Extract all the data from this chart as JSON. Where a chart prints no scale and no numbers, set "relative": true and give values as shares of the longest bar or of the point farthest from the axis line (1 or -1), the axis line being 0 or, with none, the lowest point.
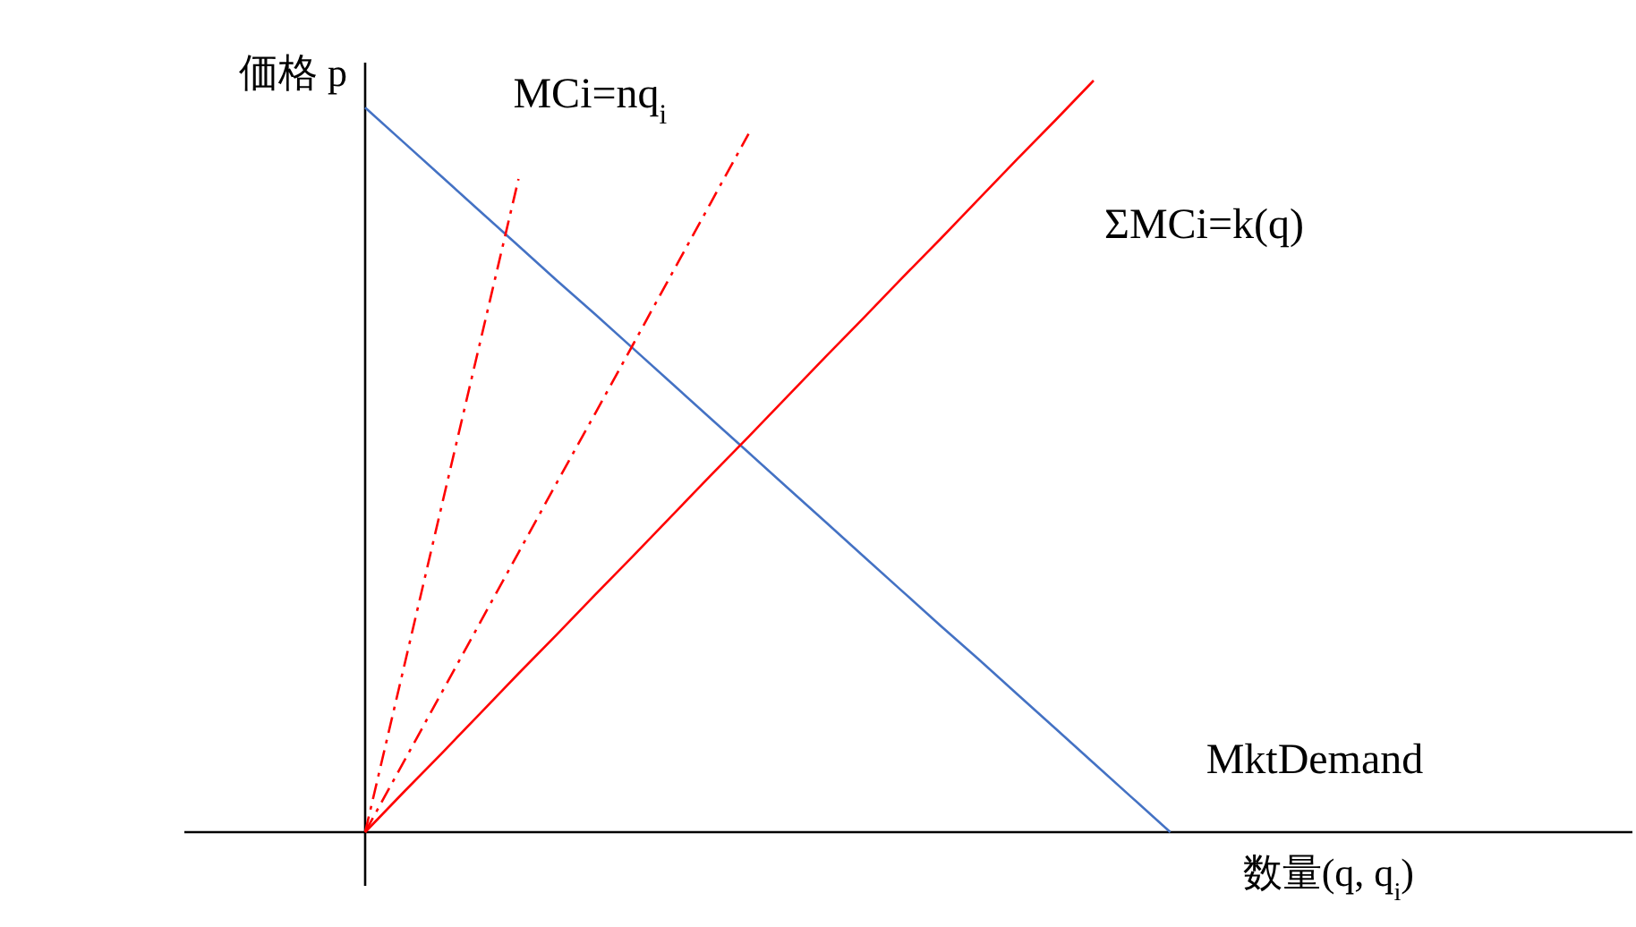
{
  "chart_data": {
    "type": "line",
    "relative": true,
    "ylabel": "価格 p",
    "xlabel": "数量(q, q$_{i}$)",
    "marker": "none",
    "categories": [
      null,
      null,
      null,
      null,
      null,
      null,
      null,
      null,
      null,
      null,
      null,
      null,
      null,
      null,
      null,
      null,
      null,
      null,
      null,
      null,
      null,
      null
    ],
    "series": [
      {
        "name": "MktDemand",
        "color": "#4472c4",
        "line_style": "solid",
        "values": [
          0.964,
          0.918,
          0.872,
          0.826,
          0.78,
          0.734,
          0.689,
          0.643,
          0.597,
          0.551,
          0.505,
          0.459,
          0.413,
          0.367,
          0.321,
          0.275,
          0.23,
          0.184,
          0.138,
          0.092,
          0.046,
          0
        ]
      },
      {
        "name": "ΣMCi=k(q)",
        "color": "#ff0000",
        "line_style": "solid",
        "values": [
          0,
          0.053,
          0.105,
          0.158,
          0.211,
          0.263,
          0.316,
          0.368,
          0.421,
          0.474,
          0.526,
          0.579,
          0.632,
          0.684,
          0.737,
          0.789,
          0.842,
          0.895,
          0.947,
          1,
          null,
          null
        ]
      },
      {
        "name": "MCi=nq$_{i}$",
        "color": "#ff0000",
        "line_style": "dashed",
        "values": [
          0,
          0.217,
          0.435,
          0.652,
          0.869,
          null,
          null,
          null,
          null,
          null,
          null,
          null,
          null,
          null,
          null,
          null,
          null,
          null,
          null,
          null,
          null,
          null
        ]
      },
      {
        "color": "#ff0000",
        "line_style": "dashed",
        "values": [
          0,
          0.093,
          0.186,
          0.279,
          0.372,
          0.465,
          0.557,
          0.65,
          0.743,
          0.836,
          0.929,
          null,
          null,
          null,
          null,
          null,
          null,
          null,
          null,
          null,
          null,
          null
        ]
      }
    ]
  }
}
